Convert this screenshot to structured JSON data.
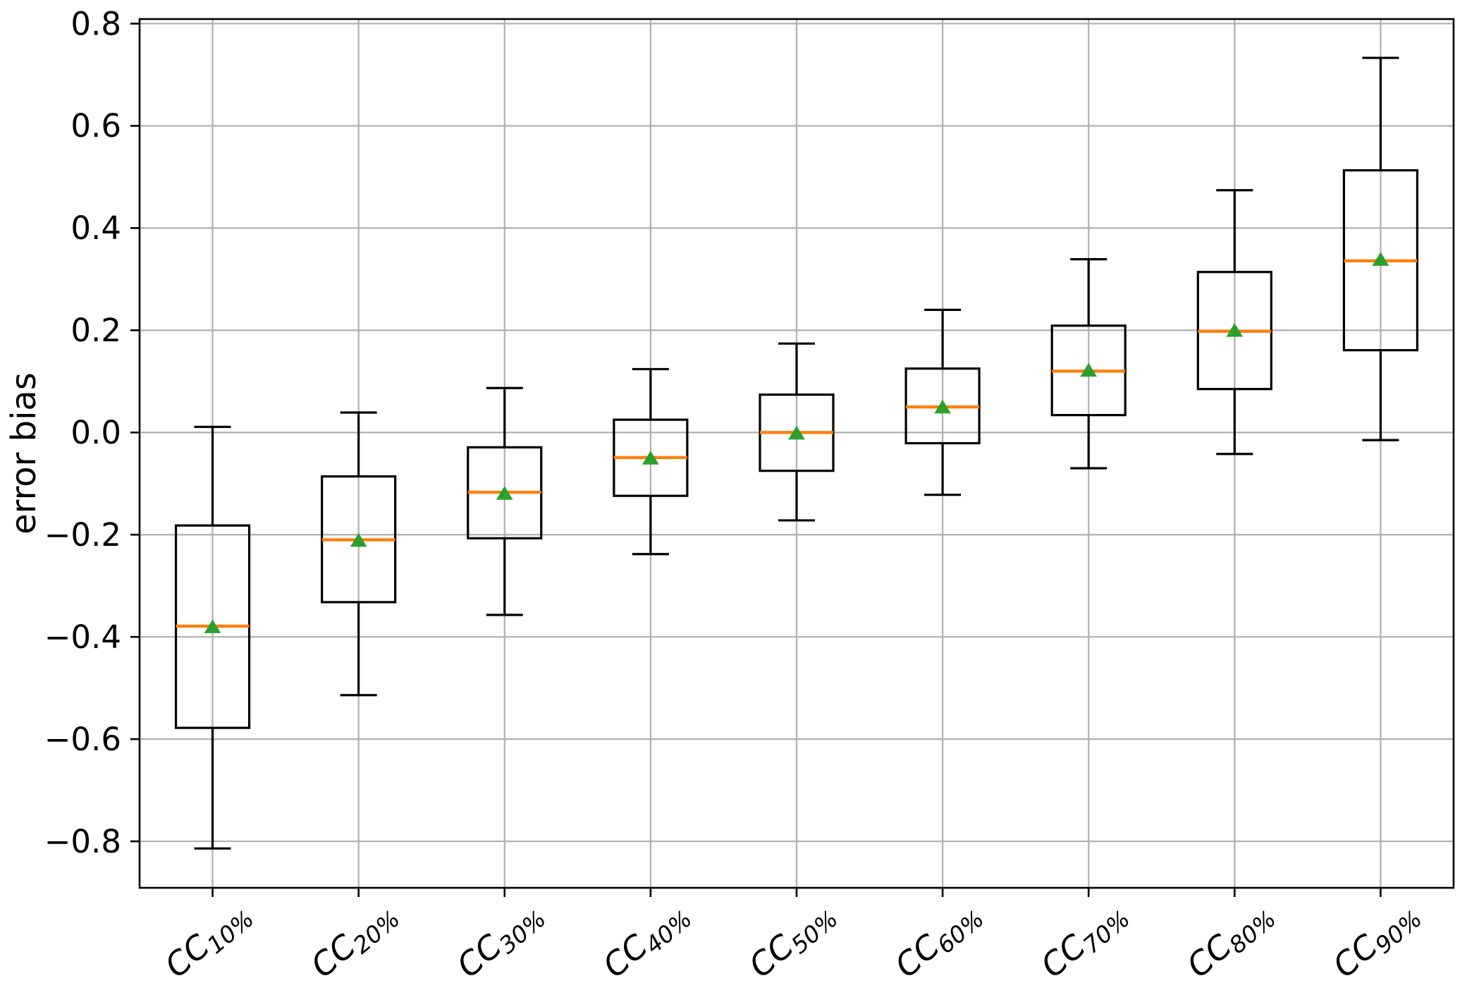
{
  "figure": {
    "background": "#ffffff"
  },
  "chart_data": {
    "type": "box",
    "title": "",
    "xlabel": "",
    "ylabel": "error bias",
    "ylim": [
      -0.891,
      0.809
    ],
    "grid": true,
    "legend_position": "none",
    "yticks": {
      "values": [
        0.8,
        0.6,
        0.4,
        0.2,
        0.0,
        -0.2,
        -0.4,
        -0.6,
        -0.8
      ],
      "labels": [
        "0.8",
        "0.6",
        "0.4",
        "0.2",
        "0.0",
        "−0.2",
        "−0.4",
        "−0.6",
        "−0.8"
      ]
    },
    "categories": [
      {
        "label": "CC10%",
        "base": "CC",
        "sub": "10%"
      },
      {
        "label": "CC20%",
        "base": "CC",
        "sub": "20%"
      },
      {
        "label": "CC30%",
        "base": "CC",
        "sub": "30%"
      },
      {
        "label": "CC40%",
        "base": "CC",
        "sub": "40%"
      },
      {
        "label": "CC50%",
        "base": "CC",
        "sub": "50%"
      },
      {
        "label": "CC60%",
        "base": "CC",
        "sub": "60%"
      },
      {
        "label": "CC70%",
        "base": "CC",
        "sub": "70%"
      },
      {
        "label": "CC80%",
        "base": "CC",
        "sub": "80%"
      },
      {
        "label": "CC90%",
        "base": "CC",
        "sub": "90%"
      }
    ],
    "boxes": [
      {
        "category": "CC10%",
        "whislo": -0.814,
        "q1": -0.578,
        "med": -0.379,
        "mean": -0.381,
        "q3": -0.182,
        "whishi": 0.011
      },
      {
        "category": "CC20%",
        "whislo": -0.514,
        "q1": -0.332,
        "med": -0.21,
        "mean": -0.212,
        "q3": -0.086,
        "whishi": 0.039
      },
      {
        "category": "CC30%",
        "whislo": -0.357,
        "q1": -0.207,
        "med": -0.117,
        "mean": -0.12,
        "q3": -0.029,
        "whishi": 0.087
      },
      {
        "category": "CC40%",
        "whislo": -0.238,
        "q1": -0.124,
        "med": -0.049,
        "mean": -0.051,
        "q3": 0.025,
        "whishi": 0.124
      },
      {
        "category": "CC50%",
        "whislo": -0.172,
        "q1": -0.075,
        "med": 0.0,
        "mean": -0.002,
        "q3": 0.074,
        "whishi": 0.174
      },
      {
        "category": "CC60%",
        "whislo": -0.122,
        "q1": -0.021,
        "med": 0.05,
        "mean": 0.049,
        "q3": 0.125,
        "whishi": 0.24
      },
      {
        "category": "CC70%",
        "whislo": -0.07,
        "q1": 0.034,
        "med": 0.12,
        "mean": 0.121,
        "q3": 0.209,
        "whishi": 0.339
      },
      {
        "category": "CC80%",
        "whislo": -0.042,
        "q1": 0.085,
        "med": 0.198,
        "mean": 0.199,
        "q3": 0.314,
        "whishi": 0.474
      },
      {
        "category": "CC90%",
        "whislo": -0.015,
        "q1": 0.161,
        "med": 0.336,
        "mean": 0.338,
        "q3": 0.513,
        "whishi": 0.733
      }
    ],
    "colors": {
      "box_line": "#000000",
      "whisker_line": "#000000",
      "median_line": "#ff7f0e",
      "mean_marker": "#2ca02c",
      "grid_line": "#b0b0b0",
      "spine": "#000000"
    }
  }
}
